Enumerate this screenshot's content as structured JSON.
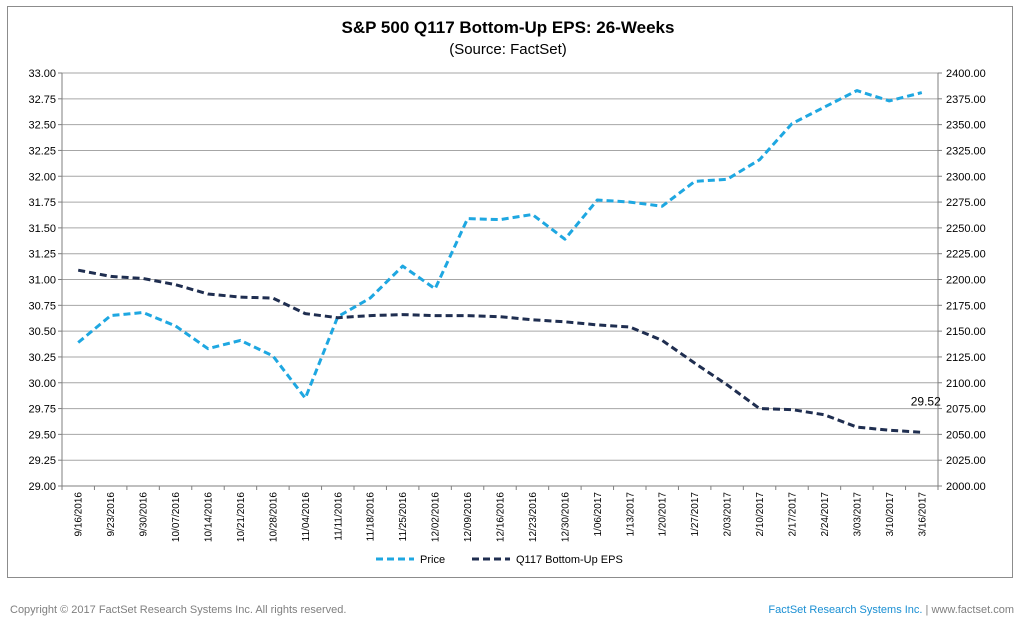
{
  "footer": {
    "copyright": "Copyright © 2017 FactSet Research Systems Inc. All rights reserved.",
    "brand": "FactSet Research Systems Inc.",
    "separator": "|",
    "url": "www.factset.com"
  },
  "colors": {
    "price": "#1ea7e1",
    "eps": "#1f2e50",
    "grid": "#a6a6a6",
    "axis": "#7f7f7f",
    "text": "#000000"
  },
  "chart_data": {
    "type": "line",
    "title": "S&P 500 Q117 Bottom-Up EPS: 26-Weeks",
    "subtitle": "(Source: FactSet)",
    "grid": true,
    "legend_position": "bottom-center",
    "categories": [
      "9/16/2016",
      "9/23/2016",
      "9/30/2016",
      "10/07/2016",
      "10/14/2016",
      "10/21/2016",
      "10/28/2016",
      "11/04/2016",
      "11/11/2016",
      "11/18/2016",
      "11/25/2016",
      "12/02/2016",
      "12/09/2016",
      "12/16/2016",
      "12/23/2016",
      "12/30/2016",
      "1/06/2017",
      "1/13/2017",
      "1/20/2017",
      "1/27/2017",
      "2/03/2017",
      "2/10/2017",
      "2/17/2017",
      "2/24/2017",
      "3/03/2017",
      "3/10/2017",
      "3/16/2017"
    ],
    "left_axis": {
      "min": 29.0,
      "max": 33.0,
      "step": 0.25,
      "ticks": [
        "29.00",
        "29.25",
        "29.50",
        "29.75",
        "30.00",
        "30.25",
        "30.50",
        "30.75",
        "31.00",
        "31.25",
        "31.50",
        "31.75",
        "32.00",
        "32.25",
        "32.50",
        "32.75",
        "33.00"
      ]
    },
    "right_axis": {
      "min": 2000.0,
      "max": 2400.0,
      "step": 25,
      "ticks": [
        "2000.00",
        "2025.00",
        "2050.00",
        "2075.00",
        "2100.00",
        "2125.00",
        "2150.00",
        "2175.00",
        "2200.00",
        "2225.00",
        "2250.00",
        "2275.00",
        "2300.00",
        "2325.00",
        "2350.00",
        "2375.00",
        "2400.00"
      ]
    },
    "series": [
      {
        "name": "Price",
        "axis": "right",
        "style": "dashed",
        "values": [
          2139,
          2165,
          2168,
          2155,
          2133,
          2141,
          2126,
          2085,
          2164,
          2182,
          2213,
          2191,
          2259,
          2258,
          2263,
          2239,
          2277,
          2275,
          2271,
          2295,
          2297,
          2316,
          2351,
          2367,
          2383,
          2373,
          2381
        ]
      },
      {
        "name": "Q117 Bottom-Up EPS",
        "axis": "left",
        "style": "dashed",
        "values": [
          31.09,
          31.03,
          31.01,
          30.95,
          30.86,
          30.83,
          30.82,
          30.67,
          30.63,
          30.65,
          30.66,
          30.65,
          30.65,
          30.64,
          30.61,
          30.59,
          30.56,
          30.54,
          30.41,
          30.19,
          29.98,
          29.75,
          29.74,
          29.69,
          29.57,
          29.54,
          29.52
        ]
      }
    ],
    "annotations": [
      {
        "text": "29.52",
        "series": "Q117 Bottom-Up EPS",
        "index": 26
      }
    ]
  }
}
